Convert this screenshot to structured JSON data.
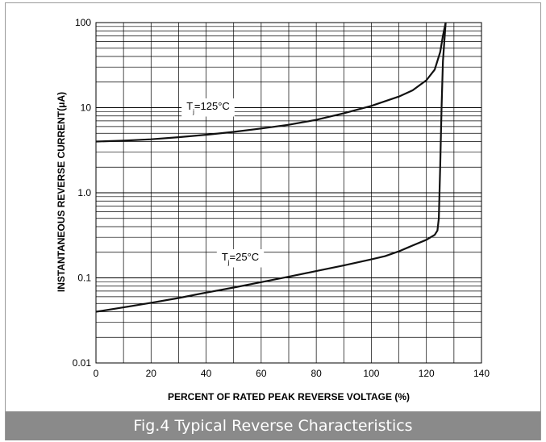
{
  "caption": "Fig.4 Typical Reverse Characteristics",
  "chart_data": {
    "type": "line",
    "title": "",
    "xlabel": "PERCENT OF RATED PEAK REVERSE VOLTAGE (%)",
    "ylabel": "INSTANTANEOUS REVERSE CURRENT(μA)",
    "xlim": [
      0,
      140
    ],
    "ylim": [
      0.01,
      100
    ],
    "yscale": "log",
    "grid": true,
    "x_ticks": [
      "0",
      "20",
      "40",
      "60",
      "80",
      "100",
      "120",
      "140"
    ],
    "y_ticks": [
      "0.01",
      "0.1",
      "1.0",
      "10",
      "100"
    ],
    "line_color": "#111111",
    "series": [
      {
        "name": "Tj=125°C",
        "label_main": "T",
        "label_sub": "j",
        "label_rest": "=125°C",
        "x": [
          0,
          10,
          20,
          30,
          40,
          50,
          60,
          70,
          80,
          90,
          100,
          110,
          115,
          120,
          123,
          125,
          126,
          127
        ],
        "y": [
          4.0,
          4.1,
          4.25,
          4.5,
          4.8,
          5.2,
          5.7,
          6.3,
          7.2,
          8.6,
          10.5,
          13.5,
          16,
          21,
          28,
          45,
          70,
          100
        ]
      },
      {
        "name": "Tj=25°C",
        "label_main": "T",
        "label_sub": "j",
        "label_rest": "=25°C",
        "x": [
          0,
          10,
          20,
          30,
          40,
          50,
          60,
          70,
          80,
          90,
          100,
          105,
          110,
          115,
          120,
          123,
          124,
          124.5,
          125,
          125.5,
          126,
          127
        ],
        "y": [
          0.04,
          0.045,
          0.051,
          0.058,
          0.067,
          0.077,
          0.089,
          0.103,
          0.12,
          0.14,
          0.165,
          0.18,
          0.205,
          0.24,
          0.28,
          0.32,
          0.36,
          0.5,
          2.0,
          10,
          35,
          100
        ]
      }
    ]
  }
}
